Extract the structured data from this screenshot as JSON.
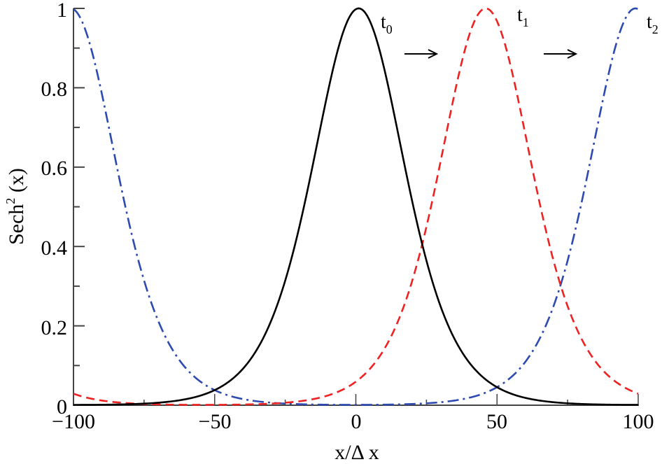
{
  "chart_data": {
    "type": "line",
    "title": "",
    "xlabel": "x/Δ x",
    "ylabel": "Sech² (x)",
    "xlim": [
      -100,
      100
    ],
    "ylim": [
      0,
      1
    ],
    "grid": false,
    "legend": null,
    "x_ticks": [
      -100,
      -50,
      0,
      50,
      100
    ],
    "x_tick_labels": [
      "−100",
      "−50",
      "0",
      "50",
      "100"
    ],
    "x_minor_ticks": [
      -75,
      -25,
      25,
      75
    ],
    "y_ticks": [
      0,
      0.2,
      0.4,
      0.6,
      0.8,
      1
    ],
    "y_tick_labels": [
      "0",
      "0.2",
      "0.4",
      "0.6",
      "0.8",
      "1"
    ],
    "y_minor_ticks": [
      0.1,
      0.3,
      0.5,
      0.7,
      0.9
    ],
    "function": "sech^2((x - center)/width), periodic on [-100, 100]",
    "width": 22,
    "series": [
      {
        "name": "t0",
        "label": "t",
        "subscript": "0",
        "center": 1,
        "style": "solid",
        "color": "#000000",
        "sample_x": [
          -100,
          -75,
          -50,
          -25,
          0,
          25,
          50,
          75,
          100
        ],
        "sample_y": [
          0.0,
          0.0,
          0.04,
          0.3,
          1.0,
          0.3,
          0.044,
          0.005,
          0.0
        ]
      },
      {
        "name": "t1",
        "label": "t",
        "subscript": "1",
        "center": 46,
        "style": "dashed",
        "color": "#ee2222",
        "sample_x": [
          -100,
          -75,
          -50,
          -25,
          0,
          25,
          50,
          75,
          100
        ],
        "sample_y": [
          0.015,
          0.001,
          0.0,
          0.0,
          0.05,
          0.37,
          0.97,
          0.22,
          0.02
        ]
      },
      {
        "name": "t2",
        "label": "t",
        "subscript": "2",
        "center": 99,
        "style": "dash-dot",
        "color": "#2c4ab0",
        "sample_x": [
          -100,
          -75,
          -50,
          -25,
          0,
          25,
          50,
          75,
          100
        ],
        "sample_y": [
          1.0,
          0.4,
          0.04,
          0.005,
          0.0,
          0.0,
          0.016,
          0.2,
          1.0
        ]
      }
    ],
    "annotations": [
      {
        "text": "t",
        "sub": "0"
      },
      {
        "text": "→",
        "kind": "arrow"
      },
      {
        "text": "t",
        "sub": "1"
      },
      {
        "text": "→",
        "kind": "arrow"
      },
      {
        "text": "t",
        "sub": "2"
      }
    ]
  },
  "labels": {
    "xlabel": "x/Δ x",
    "ylabel_main": "Sech",
    "ylabel_sup": "2",
    "ylabel_tail": " (x)",
    "t0": "t",
    "t0_sub": "0",
    "t1": "t",
    "t1_sub": "1",
    "t2": "t",
    "t2_sub": "2",
    "xt0": "−100",
    "xt1": "−50",
    "xt2": "0",
    "xt3": "50",
    "xt4": "100",
    "yt0": "0",
    "yt1": "0.2",
    "yt2": "0.4",
    "yt3": "0.6",
    "yt4": "0.8",
    "yt5": "1"
  }
}
